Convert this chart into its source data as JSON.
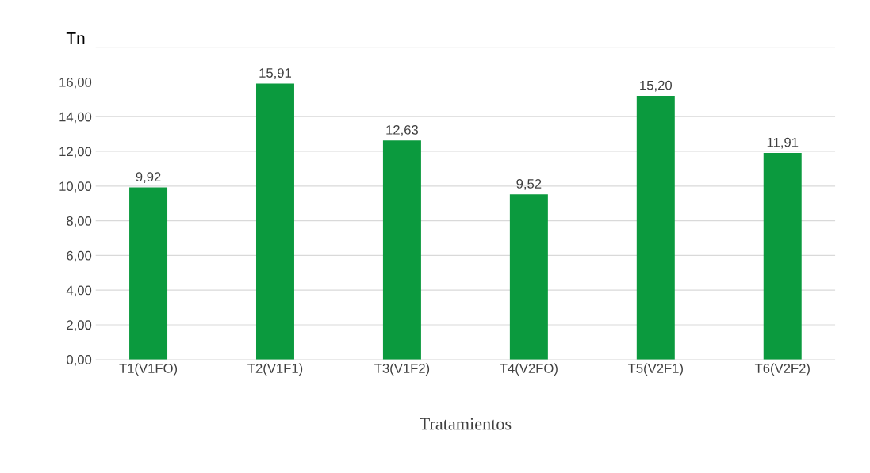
{
  "chart_data": {
    "type": "bar",
    "ylabel": "Tn",
    "xlabel": "Tratamientos",
    "categories": [
      "T1(V1FO)",
      "T2(V1F1)",
      "T3(V1F2)",
      "T4(V2FO)",
      "T5(V2F1)",
      "T6(V2F2)"
    ],
    "values": [
      9.92,
      15.91,
      12.63,
      9.52,
      15.2,
      11.91
    ],
    "value_labels": [
      "9,92",
      "15,91",
      "12,63",
      "9,52",
      "15,20",
      "11,91"
    ],
    "color": "#0b9a3e",
    "ylim": [
      0,
      18
    ],
    "yticks": [
      {
        "value": 0,
        "label": "0,00"
      },
      {
        "value": 2,
        "label": "2,00"
      },
      {
        "value": 4,
        "label": "4,00"
      },
      {
        "value": 6,
        "label": "6,00"
      },
      {
        "value": 8,
        "label": "8,00"
      },
      {
        "value": 10,
        "label": "10,00"
      },
      {
        "value": 12,
        "label": "12,00"
      },
      {
        "value": 14,
        "label": "14,00"
      },
      {
        "value": 16,
        "label": "16,00"
      },
      {
        "value": 18,
        "label": null
      }
    ],
    "grid": "y"
  }
}
